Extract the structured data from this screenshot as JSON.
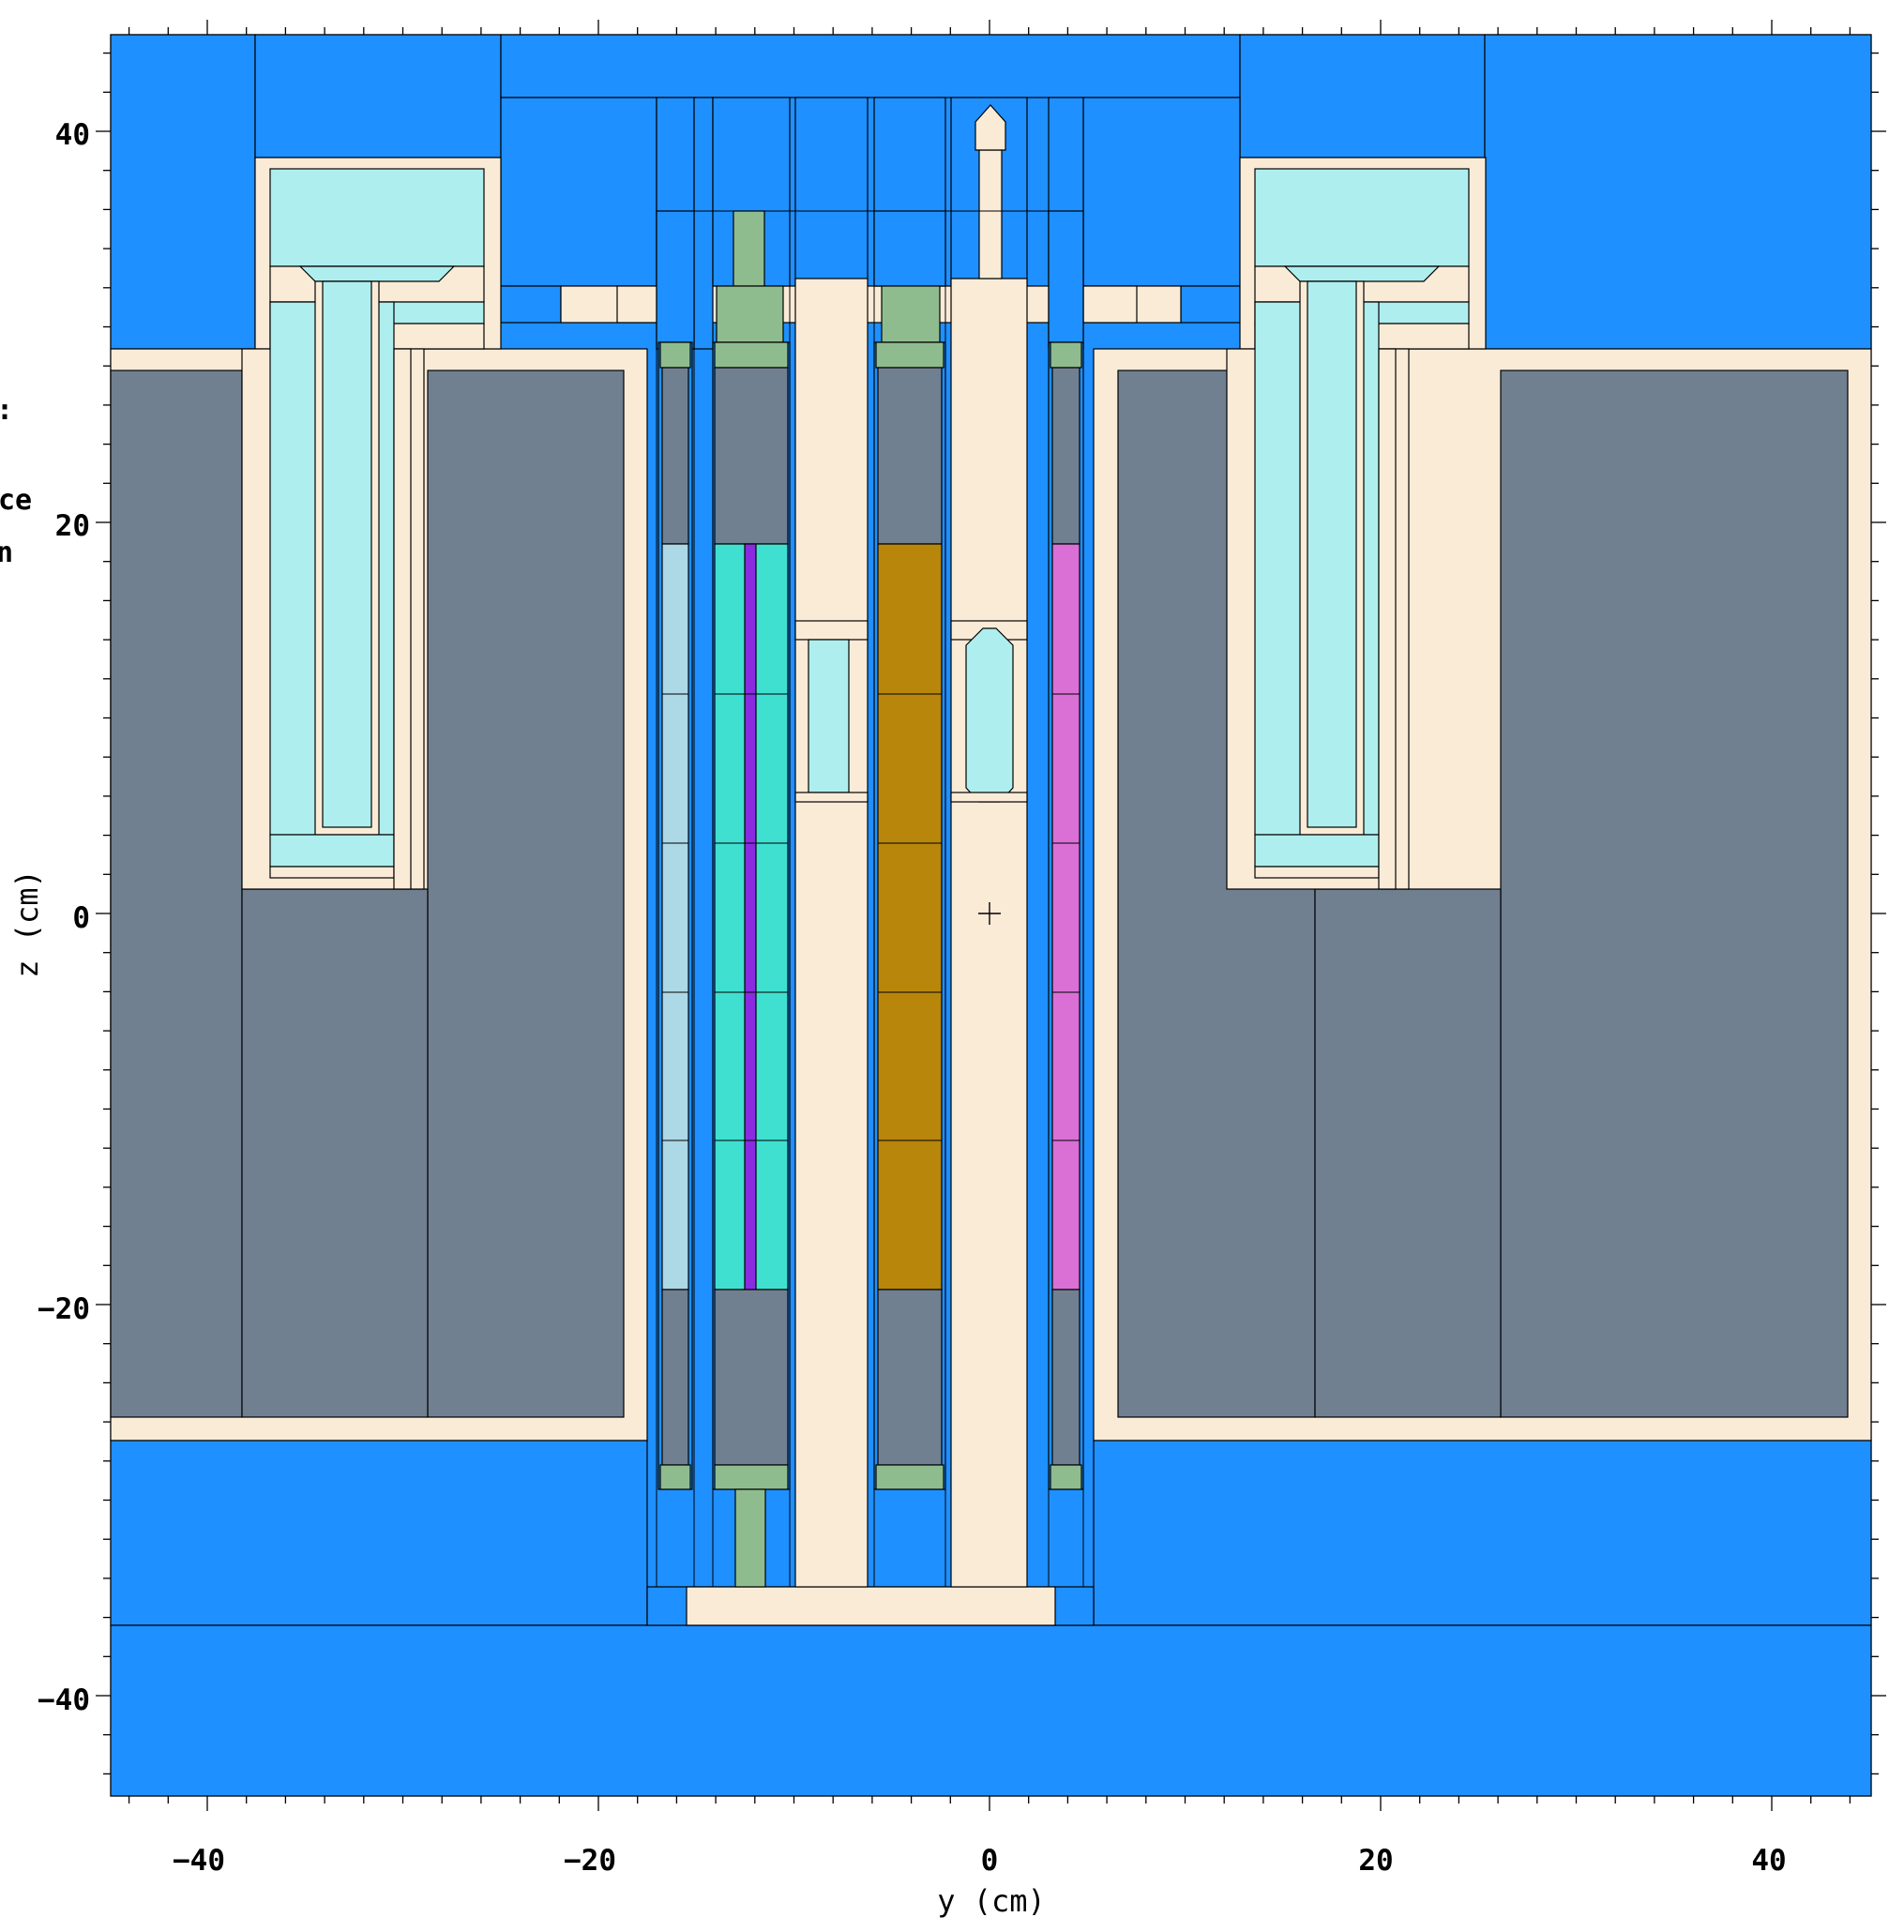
{
  "figure": {
    "xlabel": "y (cm)",
    "ylabel": "z (cm)",
    "x_ticks": [
      "−40",
      "−20",
      "0",
      "20",
      "40"
    ],
    "y_ticks": [
      "40",
      "20",
      "0",
      "−20",
      "−40"
    ],
    "x_range_cm": [
      -45,
      45
    ],
    "y_range_cm": [
      -45,
      45
    ],
    "clipped_text": [
      ":",
      "ce",
      "n"
    ]
  },
  "palette": {
    "water": "#1e90ff",
    "structure": "#faebd7",
    "graphite": "#708090",
    "light_cyan": "#afeeee",
    "cyan_fuel": "#40e0d0",
    "violet_pin": "#8a2be2",
    "gold_fuel": "#b8860b",
    "orchid_fuel": "#da70d6",
    "light_blue_fuel": "#add8e6",
    "end_fitting": "#8fbc8f",
    "edge": "#000000"
  }
}
